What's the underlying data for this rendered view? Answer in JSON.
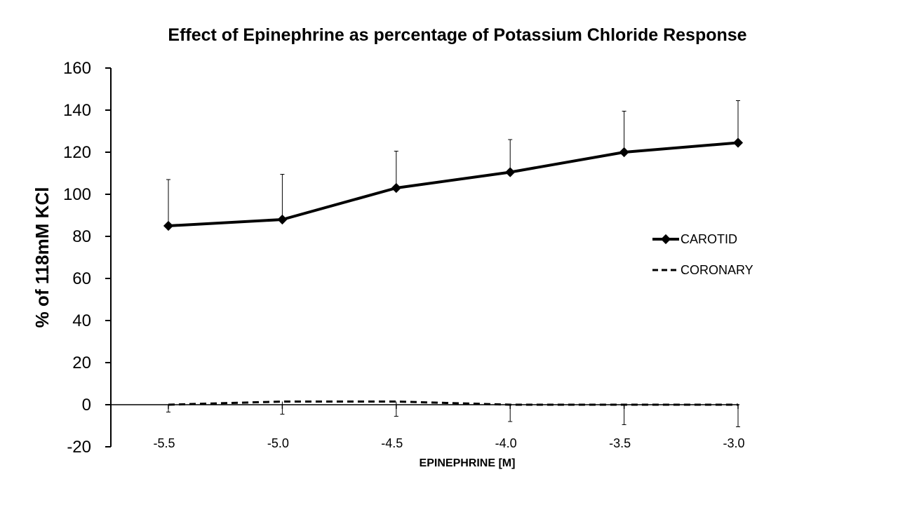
{
  "chart_data": {
    "type": "line",
    "title": "Effect of Epinephrine as percentage of Potassium Chloride Response",
    "xlabel": "EPINEPHRINE  [M]",
    "ylabel": "% of 118mM KCl",
    "x": [
      -5.5,
      -5.0,
      -4.5,
      -4.0,
      -3.5,
      -3.0
    ],
    "x_tick_labels": [
      "-5.5",
      "-5.0",
      "-4.5",
      "-4.0",
      "-3.5",
      "-3.0"
    ],
    "ylim": [
      -20,
      160
    ],
    "y_ticks": [
      -20,
      0,
      20,
      40,
      60,
      80,
      100,
      120,
      140,
      160
    ],
    "grid": false,
    "legend_position": "right",
    "series": [
      {
        "name": "CAROTID",
        "style": "solid",
        "marker": "diamond",
        "color": "#000000",
        "values": [
          85,
          88,
          103,
          110.5,
          120,
          124.5
        ],
        "error_upper": [
          22,
          21.5,
          17.5,
          15.5,
          19.5,
          20
        ]
      },
      {
        "name": "CORONARY",
        "style": "dashed",
        "marker": "none",
        "color": "#000000",
        "values": [
          0,
          1.5,
          1.5,
          0,
          0,
          0
        ],
        "error_lower": [
          3.5,
          6,
          7,
          8,
          9.5,
          10.5
        ]
      }
    ]
  }
}
